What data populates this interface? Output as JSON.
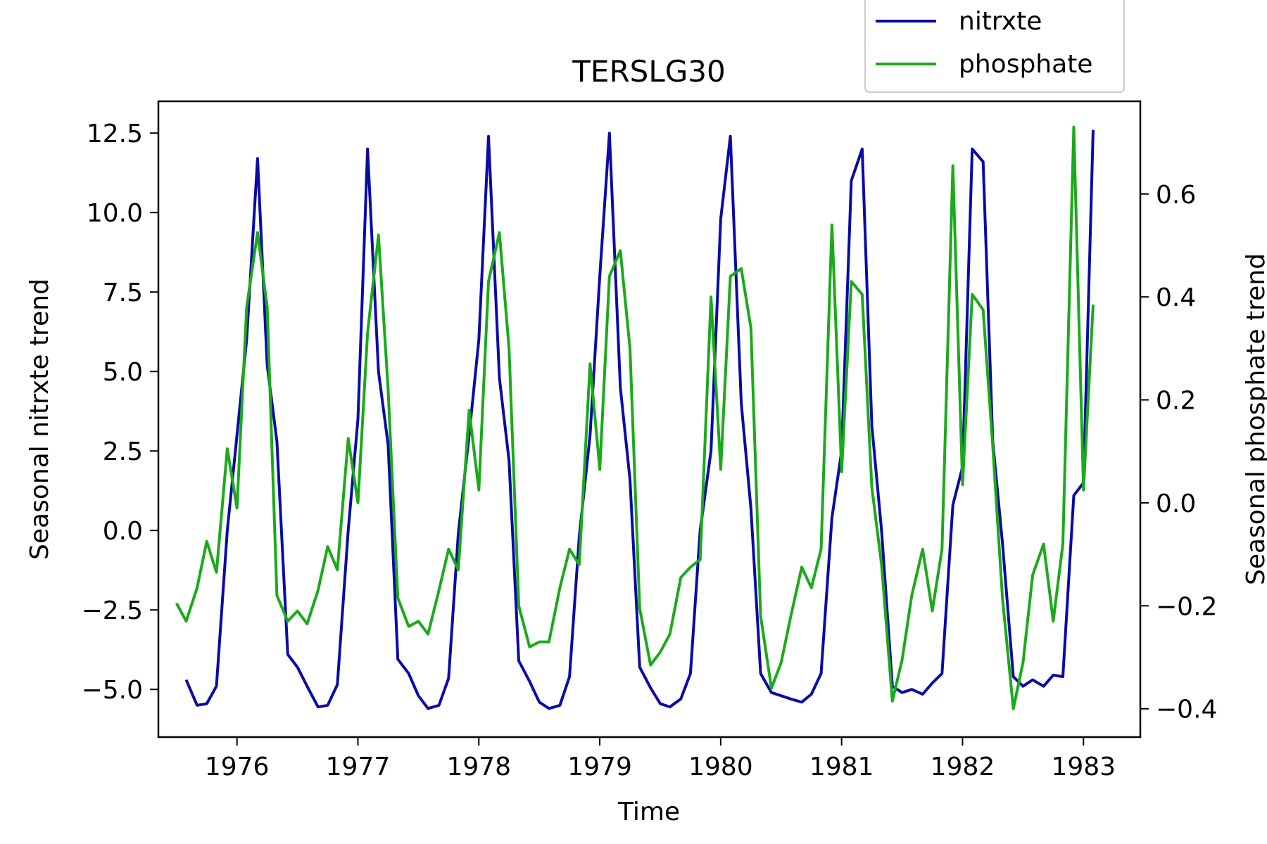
{
  "chart_data": {
    "type": "line",
    "title": "TERSLG30",
    "xlabel": "Time",
    "ylabel": "Seasonal nitrxte trend",
    "y2label": "Seasonal phosphate trend",
    "xlim": [
      1975.35,
      1983.47
    ],
    "ylim": [
      -6.5,
      13.5
    ],
    "y2lim": [
      -0.455,
      0.78
    ],
    "x_ticks": [
      1976,
      1977,
      1978,
      1979,
      1980,
      1981,
      1982,
      1983
    ],
    "x_tick_labels": [
      "1976",
      "1977",
      "1978",
      "1979",
      "1980",
      "1981",
      "1982",
      "1983"
    ],
    "y_ticks": [
      -5.0,
      -2.5,
      0.0,
      2.5,
      5.0,
      7.5,
      10.0,
      12.5
    ],
    "y_tick_labels": [
      "−5.0",
      "−2.5",
      "0.0",
      "2.5",
      "5.0",
      "7.5",
      "10.0",
      "12.5"
    ],
    "y2_ticks": [
      -0.4,
      -0.2,
      0.0,
      0.2,
      0.4,
      0.6
    ],
    "y2_tick_labels": [
      "−0.4",
      "−0.2",
      "0.0",
      "0.2",
      "0.4",
      "0.6"
    ],
    "legend_position": "top-right, above plot",
    "grid": false,
    "series": [
      {
        "name": "nitrxte",
        "axis": "left",
        "color": "#0a0aaa",
        "x": [
          1975.58,
          1975.67,
          1975.75,
          1975.83,
          1975.92,
          1976.0,
          1976.08,
          1976.17,
          1976.25,
          1976.33,
          1976.42,
          1976.5,
          1976.58,
          1976.67,
          1976.75,
          1976.83,
          1976.92,
          1977.0,
          1977.08,
          1977.17,
          1977.25,
          1977.33,
          1977.42,
          1977.5,
          1977.58,
          1977.67,
          1977.75,
          1977.83,
          1977.92,
          1978.0,
          1978.08,
          1978.17,
          1978.25,
          1978.33,
          1978.42,
          1978.5,
          1978.58,
          1978.67,
          1978.75,
          1978.83,
          1978.92,
          1979.0,
          1979.08,
          1979.17,
          1979.25,
          1979.33,
          1979.42,
          1979.5,
          1979.58,
          1979.67,
          1979.75,
          1979.83,
          1979.92,
          1980.0,
          1980.08,
          1980.17,
          1980.25,
          1980.33,
          1980.42,
          1980.5,
          1980.58,
          1980.67,
          1980.75,
          1980.83,
          1980.92,
          1981.0,
          1981.08,
          1981.17,
          1981.25,
          1981.33,
          1981.42,
          1981.5,
          1981.58,
          1981.67,
          1981.75,
          1981.83,
          1981.92,
          1982.0,
          1982.08,
          1982.17,
          1982.25,
          1982.33,
          1982.42,
          1982.5,
          1982.58,
          1982.67,
          1982.75,
          1982.83,
          1982.92,
          1983.0,
          1983.08
        ],
        "values": [
          -4.7,
          -5.5,
          -5.45,
          -4.9,
          0.0,
          3.0,
          6.0,
          11.7,
          5.2,
          2.8,
          -3.9,
          -4.3,
          -4.9,
          -5.55,
          -5.5,
          -4.85,
          0.0,
          3.5,
          12.0,
          5.0,
          2.7,
          -4.05,
          -4.5,
          -5.2,
          -5.6,
          -5.5,
          -4.65,
          -0.1,
          3.0,
          6.0,
          12.4,
          4.8,
          2.2,
          -4.1,
          -4.75,
          -5.4,
          -5.6,
          -5.5,
          -4.6,
          -0.2,
          3.0,
          8.0,
          12.5,
          4.5,
          1.6,
          -4.3,
          -4.95,
          -5.45,
          -5.55,
          -5.3,
          -4.5,
          0.0,
          2.5,
          9.8,
          12.4,
          4.0,
          0.7,
          -4.5,
          -5.1,
          -5.2,
          -5.3,
          -5.4,
          -5.15,
          -4.5,
          0.4,
          2.5,
          11.0,
          12.0,
          3.3,
          0.0,
          -4.9,
          -5.1,
          -5.0,
          -5.15,
          -4.8,
          -4.5,
          0.8,
          2.0,
          12.0,
          11.6,
          2.8,
          -0.4,
          -4.6,
          -4.9,
          -4.7,
          -4.9,
          -4.55,
          -4.6,
          1.1,
          1.5,
          12.6
        ]
      },
      {
        "name": "phosphate",
        "axis": "right",
        "color": "#1aaa1a",
        "x": [
          1975.5,
          1975.58,
          1975.67,
          1975.75,
          1975.83,
          1975.92,
          1976.0,
          1976.08,
          1976.17,
          1976.25,
          1976.33,
          1976.42,
          1976.5,
          1976.58,
          1976.67,
          1976.75,
          1976.83,
          1976.92,
          1977.0,
          1977.08,
          1977.17,
          1977.25,
          1977.33,
          1977.42,
          1977.5,
          1977.58,
          1977.67,
          1977.75,
          1977.83,
          1977.92,
          1978.0,
          1978.08,
          1978.17,
          1978.25,
          1978.33,
          1978.42,
          1978.5,
          1978.58,
          1978.67,
          1978.75,
          1978.83,
          1978.92,
          1979.0,
          1979.08,
          1979.17,
          1979.25,
          1979.33,
          1979.42,
          1979.5,
          1979.58,
          1979.67,
          1979.75,
          1979.83,
          1979.92,
          1980.0,
          1980.08,
          1980.17,
          1980.25,
          1980.33,
          1980.42,
          1980.5,
          1980.58,
          1980.67,
          1980.75,
          1980.83,
          1980.92,
          1981.0,
          1981.08,
          1981.17,
          1981.25,
          1981.33,
          1981.42,
          1981.5,
          1981.58,
          1981.67,
          1981.75,
          1981.83,
          1981.92,
          1982.0,
          1982.08,
          1982.17,
          1982.25,
          1982.33,
          1982.42,
          1982.5,
          1982.58,
          1982.67,
          1982.75,
          1982.83,
          1982.92,
          1983.0,
          1983.08
        ],
        "values": [
          -0.195,
          -0.23,
          -0.165,
          -0.075,
          -0.135,
          0.105,
          -0.01,
          0.38,
          0.525,
          0.38,
          -0.18,
          -0.23,
          -0.21,
          -0.235,
          -0.17,
          -0.085,
          -0.13,
          0.125,
          0.0,
          0.33,
          0.52,
          0.22,
          -0.185,
          -0.24,
          -0.23,
          -0.255,
          -0.17,
          -0.09,
          -0.13,
          0.18,
          0.025,
          0.43,
          0.525,
          0.3,
          -0.2,
          -0.28,
          -0.27,
          -0.27,
          -0.165,
          -0.09,
          -0.12,
          0.27,
          0.065,
          0.44,
          0.49,
          0.3,
          -0.205,
          -0.315,
          -0.29,
          -0.255,
          -0.145,
          -0.125,
          -0.11,
          0.4,
          0.065,
          0.44,
          0.455,
          0.34,
          -0.22,
          -0.36,
          -0.31,
          -0.22,
          -0.125,
          -0.165,
          -0.09,
          0.54,
          0.06,
          0.43,
          0.405,
          0.03,
          -0.12,
          -0.385,
          -0.305,
          -0.18,
          -0.09,
          -0.21,
          -0.09,
          0.655,
          0.035,
          0.405,
          0.375,
          0.11,
          -0.185,
          -0.4,
          -0.31,
          -0.14,
          -0.08,
          -0.23,
          -0.08,
          0.73,
          0.025,
          0.385
        ]
      }
    ]
  }
}
